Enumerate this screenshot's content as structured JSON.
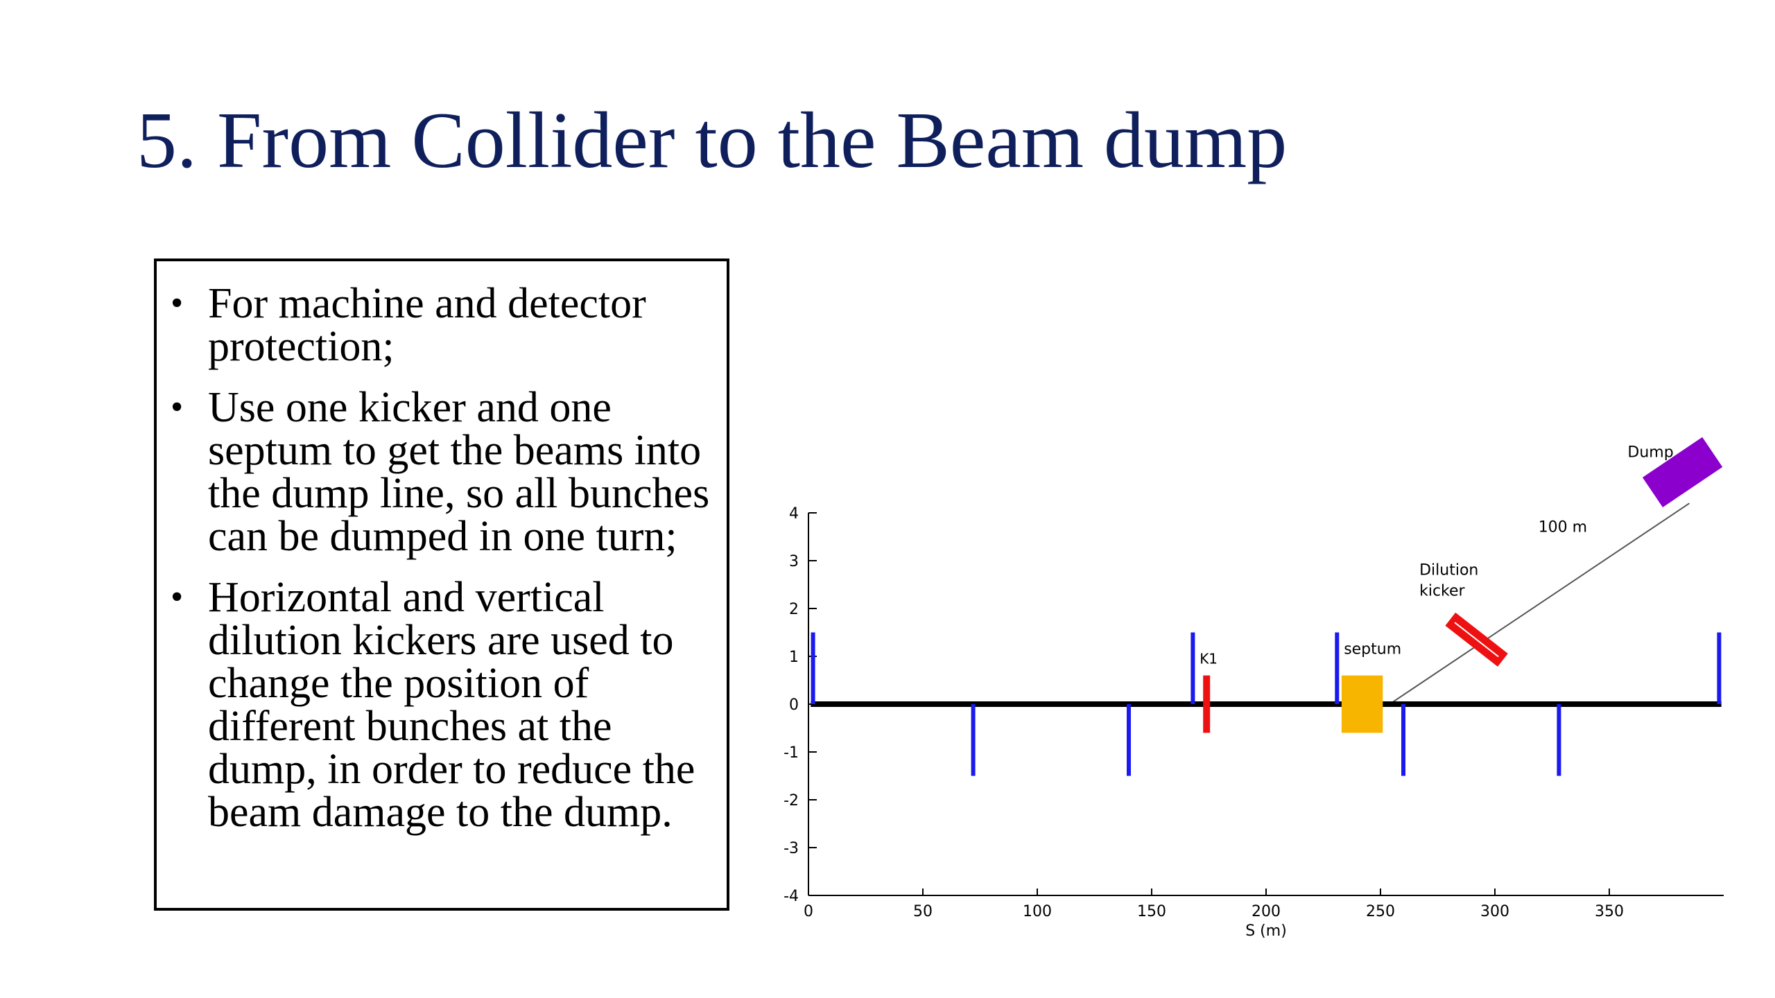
{
  "slide": {
    "title": "5. From Collider to the Beam dump"
  },
  "bullets": [
    "For machine and detector protection;",
    "Use one kicker and one septum to get the beams into the dump line, so all bunches can be dumped in one turn;",
    "Horizontal and vertical dilution kickers are used to change the position of different bunches at the dump, in order to reduce the beam damage to the dump."
  ],
  "chart_data": {
    "type": "diagram",
    "xlabel": "S (m)",
    "xlim": [
      0,
      400
    ],
    "ylim": [
      -4,
      4
    ],
    "x_ticks": [
      0,
      50,
      100,
      150,
      200,
      250,
      300,
      350
    ],
    "y_ticks": [
      4,
      3,
      2,
      1,
      0,
      -1,
      -2,
      -3,
      -4
    ],
    "quadrupoles": [
      {
        "s": 2,
        "y": 1.5
      },
      {
        "s": 72,
        "y": -1.5
      },
      {
        "s": 140,
        "y": -1.5
      },
      {
        "s": 168,
        "y": 1.5
      },
      {
        "s": 231,
        "y": 1.5
      },
      {
        "s": 260,
        "y": -1.5
      },
      {
        "s": 328,
        "y": -1.5
      },
      {
        "s": 398,
        "y": 1.5
      }
    ],
    "elements": [
      {
        "name": "K1",
        "s": 174,
        "color": "#ee1111"
      },
      {
        "name": "septum",
        "s": 241,
        "color": "#f7b500"
      },
      {
        "name": "Dilution kicker",
        "color": "#ee1111"
      },
      {
        "name": "Dump",
        "color": "#8b00cc"
      }
    ],
    "annotations": {
      "k1": "K1",
      "septum": "septum",
      "dilution_line1": "Dilution",
      "dilution_line2": "kicker",
      "distance": "100 m",
      "dump": "Dump"
    },
    "colors": {
      "quad": "#1a1aee",
      "beamline": "#000000",
      "dumpline": "#555555"
    }
  }
}
